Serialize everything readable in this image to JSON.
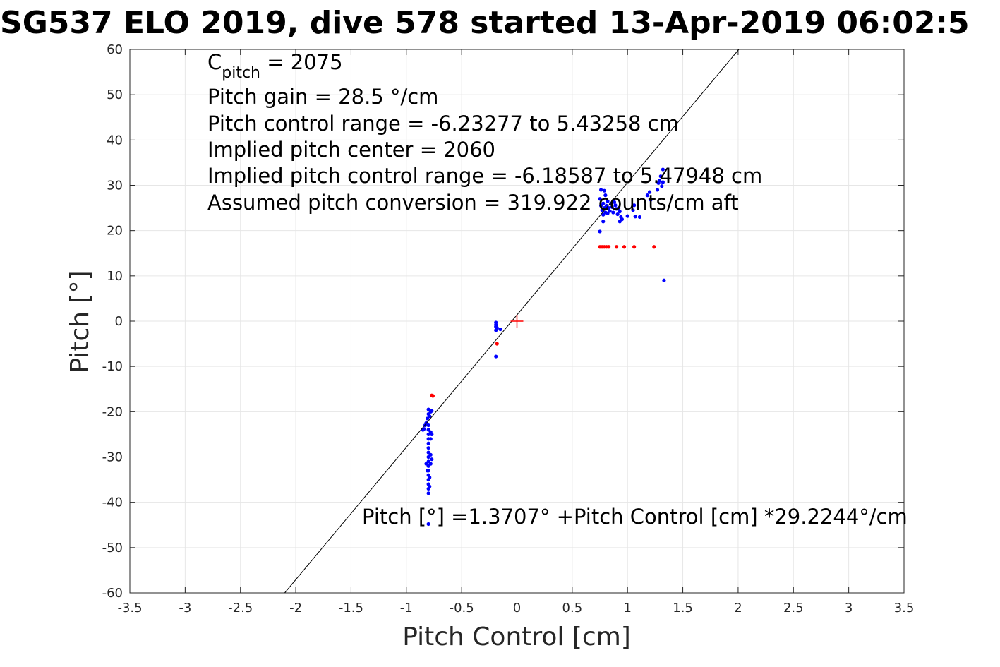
{
  "chart_data": {
    "type": "scatter",
    "title": "SG537 ELO 2019, dive 578 started 13-Apr-2019 06:02:5",
    "xlabel": "Pitch Control [cm]",
    "ylabel": "Pitch [°]",
    "xlim": [
      -3.5,
      3.5
    ],
    "ylim": [
      -60,
      60
    ],
    "xticks": [
      -3.5,
      -3,
      -2.5,
      -2,
      -1.5,
      -1,
      -0.5,
      0,
      0.5,
      1,
      1.5,
      2,
      2.5,
      3,
      3.5
    ],
    "xtick_labels": [
      "-3.5",
      "-3",
      "-2.5",
      "-2",
      "-1.5",
      "-1",
      "-0.5",
      "0",
      "0.5",
      "1",
      "1.5",
      "2",
      "2.5",
      "3",
      "3.5"
    ],
    "yticks": [
      -60,
      -50,
      -40,
      -30,
      -20,
      -10,
      0,
      10,
      20,
      30,
      40,
      50,
      60
    ],
    "ytick_labels": [
      "-60",
      "-50",
      "-40",
      "-30",
      "-20",
      "-10",
      "0",
      "10",
      "20",
      "30",
      "40",
      "50",
      "60"
    ],
    "grid": true,
    "annotations": {
      "cpitch_main": "C",
      "cpitch_sub": "pitch",
      "cpitch_value": " = 2075",
      "lines": [
        "Pitch gain = 28.5 °/cm",
        "Pitch control range = -6.23277 to 5.43258 cm",
        "Implied pitch center = 2060",
        "Implied pitch control range = -6.18587 to 5.47948 cm",
        "Assumed pitch conversion = 319.922 counts/cm aft"
      ],
      "fit_equation": "Pitch [°] =1.3707° +Pitch Control [cm] *29.2244°/cm"
    },
    "fit_line": {
      "intercept": 1.3707,
      "slope": 29.2244,
      "color": "#000000"
    },
    "center_marker": {
      "x": 0,
      "y": 0,
      "color": "#ff0000"
    },
    "series": [
      {
        "color": "#0000ff",
        "points": [
          [
            -0.8,
            -19.5
          ],
          [
            -0.8,
            -20.5
          ],
          [
            -0.79,
            -21.0
          ],
          [
            -0.78,
            -20.0
          ],
          [
            -0.77,
            -19.8
          ],
          [
            -0.81,
            -21.5
          ],
          [
            -0.82,
            -22.5
          ],
          [
            -0.83,
            -23.0
          ],
          [
            -0.84,
            -23.8
          ],
          [
            -0.85,
            -24.0
          ],
          [
            -0.8,
            -23.0
          ],
          [
            -0.8,
            -24.0
          ],
          [
            -0.8,
            -25.0
          ],
          [
            -0.8,
            -26.0
          ],
          [
            -0.8,
            -27.0
          ],
          [
            -0.8,
            -28.0
          ],
          [
            -0.8,
            -29.0
          ],
          [
            -0.8,
            -30.0
          ],
          [
            -0.8,
            -31.0
          ],
          [
            -0.8,
            -32.0
          ],
          [
            -0.8,
            -33.0
          ],
          [
            -0.8,
            -34.0
          ],
          [
            -0.8,
            -35.0
          ],
          [
            -0.8,
            -36.0
          ],
          [
            -0.8,
            -37.0
          ],
          [
            -0.8,
            -38.0
          ],
          [
            -0.79,
            -36.5
          ],
          [
            -0.79,
            -34.5
          ],
          [
            -0.78,
            -24.5
          ],
          [
            -0.77,
            -25.0
          ],
          [
            -0.78,
            -29.5
          ],
          [
            -0.77,
            -30.5
          ],
          [
            -0.78,
            -31.5
          ],
          [
            -0.78,
            -26.0
          ],
          [
            -0.82,
            -31.5
          ],
          [
            -0.81,
            -33.0
          ],
          [
            -0.8,
            -44.8
          ],
          [
            -0.19,
            -0.3
          ],
          [
            -0.19,
            -0.8
          ],
          [
            -0.19,
            -1.2
          ],
          [
            -0.18,
            -1.5
          ],
          [
            -0.19,
            -2.0
          ],
          [
            -0.15,
            -1.8
          ],
          [
            -0.19,
            -7.8
          ],
          [
            0.75,
            27.0
          ],
          [
            0.76,
            25.5
          ],
          [
            0.77,
            24.5
          ],
          [
            0.78,
            26.0
          ],
          [
            0.78,
            23.5
          ],
          [
            0.79,
            25.0
          ],
          [
            0.8,
            27.8
          ],
          [
            0.8,
            24.0
          ],
          [
            0.81,
            25.5
          ],
          [
            0.82,
            26.5
          ],
          [
            0.82,
            23.8
          ],
          [
            0.83,
            25.0
          ],
          [
            0.84,
            24.3
          ],
          [
            0.85,
            26.0
          ],
          [
            0.86,
            25.2
          ],
          [
            0.87,
            24.0
          ],
          [
            0.88,
            26.3
          ],
          [
            0.89,
            25.6
          ],
          [
            0.9,
            24.8
          ],
          [
            0.91,
            23.6
          ],
          [
            0.92,
            25.0
          ],
          [
            0.93,
            24.2
          ],
          [
            0.94,
            23.0
          ],
          [
            0.95,
            22.5
          ],
          [
            0.93,
            22.0
          ],
          [
            0.79,
            28.8
          ],
          [
            0.76,
            29.0
          ],
          [
            0.75,
            19.8
          ],
          [
            0.78,
            22.0
          ],
          [
            1.0,
            23.2
          ],
          [
            1.05,
            24.5
          ],
          [
            1.06,
            25.6
          ],
          [
            1.07,
            23.1
          ],
          [
            1.11,
            23.0
          ],
          [
            1.18,
            27.8
          ],
          [
            1.2,
            28.5
          ],
          [
            1.21,
            26.8
          ],
          [
            1.27,
            29.0
          ],
          [
            1.28,
            30.5
          ],
          [
            1.29,
            31.0
          ],
          [
            1.3,
            32.0
          ],
          [
            1.31,
            29.8
          ],
          [
            1.32,
            30.7
          ],
          [
            1.32,
            33.5
          ],
          [
            1.33,
            9.0
          ]
        ]
      },
      {
        "color": "#ff0000",
        "points": [
          [
            -0.77,
            -16.4
          ],
          [
            -0.76,
            -16.5
          ],
          [
            -0.18,
            -5.0
          ],
          [
            0.75,
            16.4
          ],
          [
            0.77,
            16.4
          ],
          [
            0.79,
            16.4
          ],
          [
            0.81,
            16.4
          ],
          [
            0.83,
            16.4
          ],
          [
            0.9,
            16.4
          ],
          [
            0.97,
            16.4
          ],
          [
            1.06,
            16.4
          ],
          [
            1.24,
            16.4
          ]
        ]
      }
    ]
  }
}
